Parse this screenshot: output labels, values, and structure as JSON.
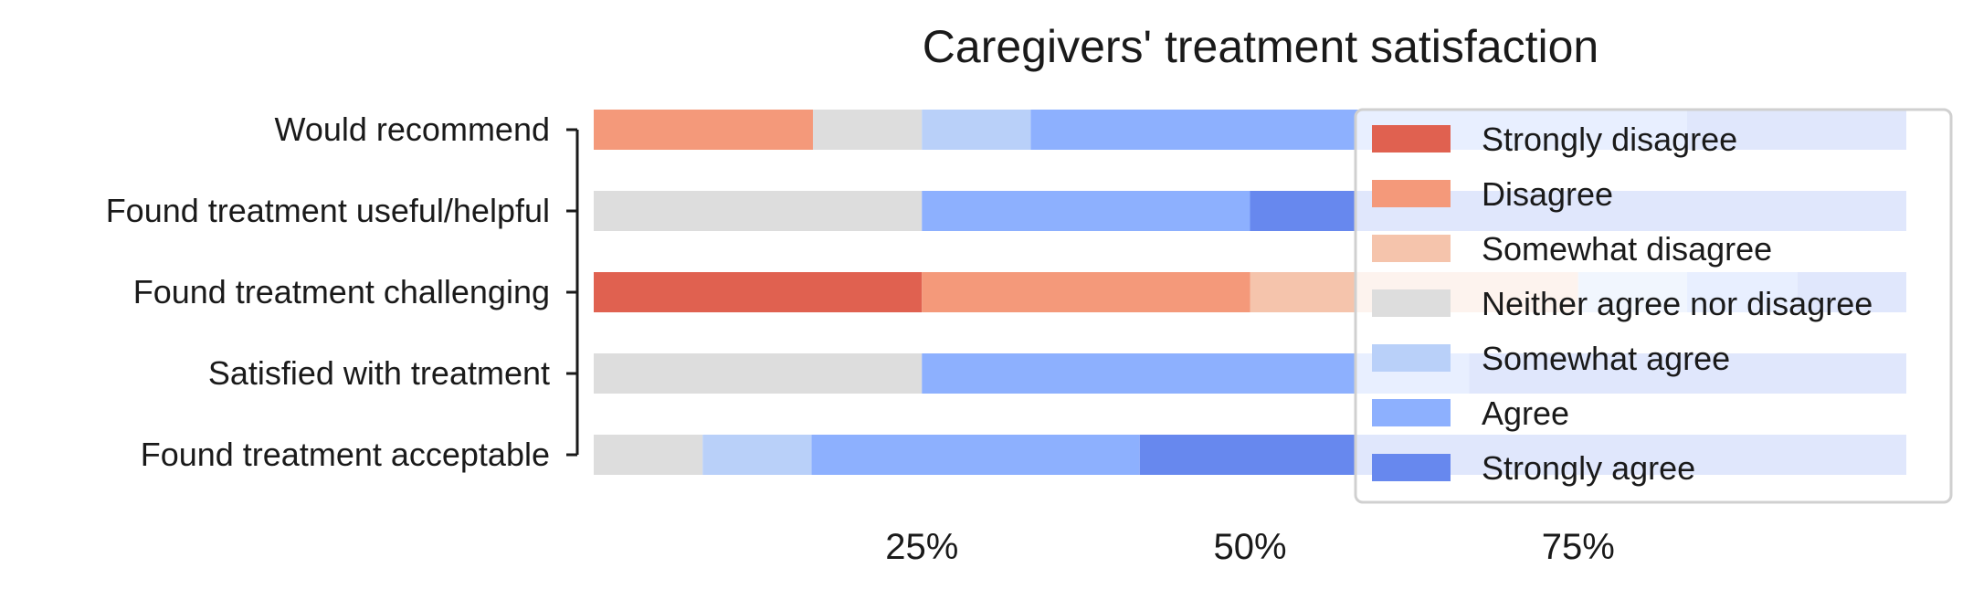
{
  "chart_data": {
    "type": "bar",
    "orientation": "horizontal",
    "stacked": true,
    "title": "Caregivers' treatment satisfaction",
    "xlabel": "",
    "ylabel": "",
    "xlim": [
      0,
      100
    ],
    "x_ticks": [
      25,
      50,
      75
    ],
    "x_tick_labels": [
      "25%",
      "50%",
      "75%"
    ],
    "grid": false,
    "legend_position": "top-right",
    "categories": [
      "Would recommend",
      "Found treatment useful/helpful",
      "Found treatment challenging",
      "Satisfied with treatment",
      "Found treatment acceptable"
    ],
    "series": [
      {
        "name": "Strongly disagree",
        "color": "#e06150",
        "values": [
          0,
          0,
          25,
          0,
          0
        ]
      },
      {
        "name": "Disagree",
        "color": "#f4997a",
        "values": [
          16.7,
          0,
          25,
          0,
          0
        ]
      },
      {
        "name": "Somewhat disagree",
        "color": "#f5c4ac",
        "values": [
          0,
          0,
          25,
          0,
          0
        ]
      },
      {
        "name": "Neither agree nor disagree",
        "color": "#dddddd",
        "values": [
          8.3,
          25,
          0,
          25,
          8.3
        ]
      },
      {
        "name": "Somewhat agree",
        "color": "#b9d0f9",
        "values": [
          8.3,
          0,
          8.3,
          0,
          8.3
        ]
      },
      {
        "name": "Agree",
        "color": "#8db0fe",
        "values": [
          50,
          25,
          8.4,
          41.7,
          25
        ]
      },
      {
        "name": "Strongly agree",
        "color": "#6788ee",
        "values": [
          16.7,
          50,
          8.3,
          33.3,
          58.4
        ]
      }
    ]
  }
}
